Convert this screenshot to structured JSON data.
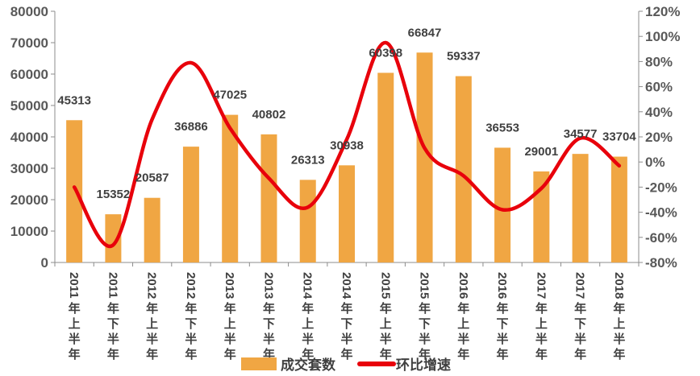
{
  "chart_data": {
    "type": "bar+line",
    "categories": [
      "2011年上半年",
      "2011年下半年",
      "2012年上半年",
      "2012年下半年",
      "2013年上半年",
      "2013年下半年",
      "2014年上半年",
      "2014年下半年",
      "2015年上半年",
      "2015年下半年",
      "2016年上半年",
      "2016年下半年",
      "2017年上半年",
      "2017年下半年",
      "2018年上半年"
    ],
    "series": [
      {
        "name": "成交套数",
        "type": "bar",
        "axis": "left",
        "color": "#F0A643",
        "values": [
          45313,
          15352,
          20587,
          36886,
          47025,
          40802,
          26313,
          30938,
          60398,
          66847,
          59337,
          36553,
          29001,
          34577,
          33704
        ],
        "data_labels": [
          "45313",
          "15352",
          "20587",
          "36886",
          "47025",
          "40802",
          "26313",
          "30938",
          "60398",
          "66847",
          "59337",
          "36553",
          "29001",
          "34577",
          "33704"
        ]
      },
      {
        "name": "环比增速",
        "type": "line",
        "axis": "right",
        "color": "#E8000B",
        "smooth": true,
        "values": [
          -20,
          -66,
          34,
          79,
          27,
          -13,
          -36,
          18,
          95,
          11,
          -11,
          -38,
          -21,
          19,
          -3
        ]
      }
    ],
    "left_axis": {
      "ylim": [
        0,
        80000
      ],
      "ticks": [
        "0",
        "10000",
        "20000",
        "30000",
        "40000",
        "50000",
        "60000",
        "70000",
        "80000"
      ]
    },
    "right_axis": {
      "ylim": [
        -80,
        120
      ],
      "unit": "%",
      "ticks": [
        "-80%",
        "-60%",
        "-40%",
        "-20%",
        "0%",
        "20%",
        "40%",
        "60%",
        "80%",
        "100%",
        "120%"
      ]
    },
    "grid": false,
    "legend": "bottom"
  }
}
